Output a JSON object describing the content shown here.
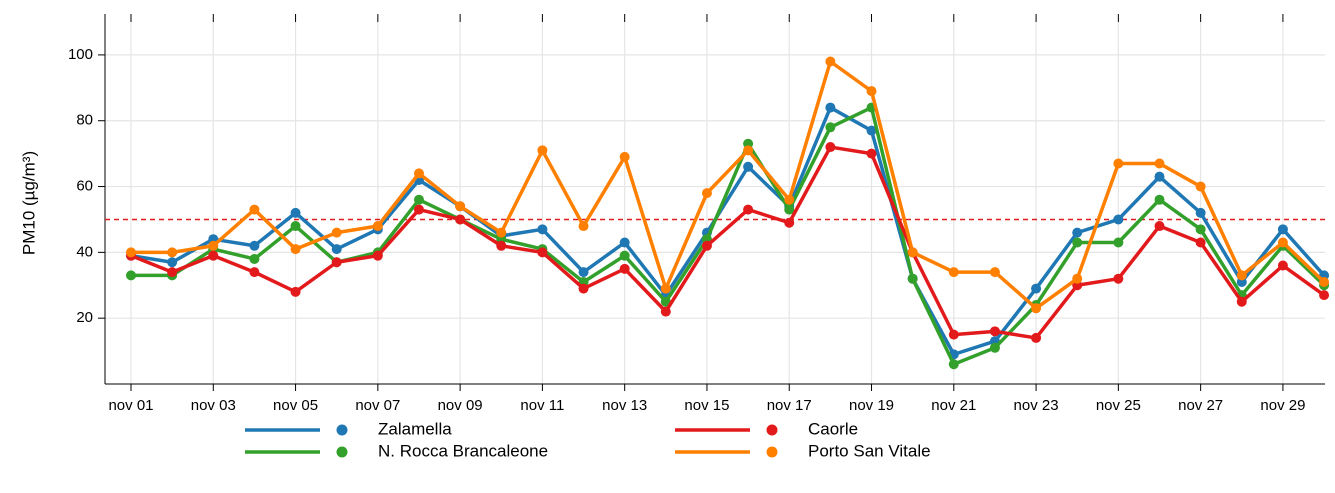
{
  "chart_data": {
    "type": "line",
    "y_label": "PM10 (µg/m³)",
    "categories": [
      "nov 01",
      null,
      "nov 03",
      null,
      "nov 05",
      null,
      "nov 07",
      null,
      "nov 09",
      null,
      "nov 11",
      null,
      "nov 13",
      null,
      "nov 15",
      null,
      "nov 17",
      null,
      "nov 19",
      null,
      "nov 21",
      null,
      "nov 23",
      null,
      "nov 25",
      null,
      "nov 27",
      null,
      "nov 29",
      null
    ],
    "series": [
      {
        "name": "Zalamella",
        "color": "#1f78b4",
        "values": [
          39,
          37,
          44,
          42,
          52,
          41,
          47,
          62,
          54,
          45,
          47,
          34,
          43,
          27,
          46,
          66,
          54,
          84,
          77,
          32,
          9,
          13,
          29,
          46,
          50,
          63,
          52,
          31,
          47,
          33
        ]
      },
      {
        "name": "N. Rocca Brancaleone",
        "color": "#33a02c",
        "values": [
          33,
          33,
          41,
          38,
          48,
          37,
          40,
          56,
          50,
          44,
          41,
          31,
          39,
          25,
          44,
          73,
          53,
          78,
          84,
          32,
          6,
          11,
          24,
          43,
          43,
          56,
          47,
          27,
          42,
          30
        ]
      },
      {
        "name": "Caorle",
        "color": "#e31a1c",
        "values": [
          39,
          34,
          39,
          34,
          28,
          37,
          39,
          53,
          50,
          42,
          40,
          29,
          35,
          22,
          42,
          53,
          49,
          72,
          70,
          40,
          15,
          16,
          14,
          30,
          32,
          48,
          43,
          25,
          36,
          27
        ]
      },
      {
        "name": "Porto San Vitale",
        "color": "#ff7f00",
        "values": [
          40,
          40,
          42,
          53,
          41,
          46,
          48,
          64,
          54,
          46,
          71,
          48,
          69,
          29,
          58,
          71,
          56,
          98,
          89,
          40,
          34,
          34,
          23,
          32,
          67,
          67,
          60,
          33,
          43,
          31
        ]
      }
    ],
    "threshold": {
      "value": 50,
      "color": "#e31a1c"
    },
    "ylim": [
      0,
      110
    ],
    "yticks": [
      20,
      40,
      60,
      80,
      100
    ],
    "grid": true,
    "legend": "bottom"
  }
}
